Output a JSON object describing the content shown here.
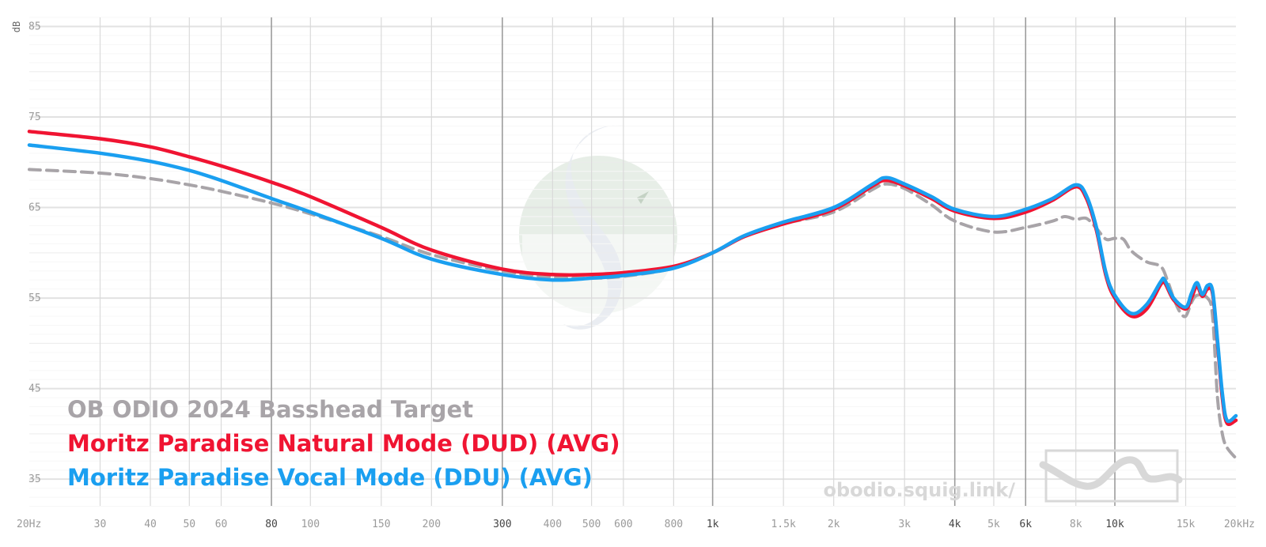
{
  "chart_data": {
    "type": "line",
    "y_unit": "dB",
    "x_scale": "log",
    "xlim": [
      20,
      20000
    ],
    "ylim": [
      31,
      86
    ],
    "grid": true,
    "y_ticks": [
      {
        "value": 85,
        "label": "85"
      },
      {
        "value": 75,
        "label": "75"
      },
      {
        "value": 65,
        "label": "65"
      },
      {
        "value": 55,
        "label": "55"
      },
      {
        "value": 45,
        "label": "45"
      },
      {
        "value": 35,
        "label": "35"
      }
    ],
    "x_ticks": [
      {
        "value": 20,
        "label": "20Hz",
        "major": false
      },
      {
        "value": 30,
        "label": "30",
        "major": false
      },
      {
        "value": 40,
        "label": "40",
        "major": false
      },
      {
        "value": 50,
        "label": "50",
        "major": false
      },
      {
        "value": 60,
        "label": "60",
        "major": false
      },
      {
        "value": 80,
        "label": "80",
        "major": true
      },
      {
        "value": 100,
        "label": "100",
        "major": false
      },
      {
        "value": 150,
        "label": "150",
        "major": false
      },
      {
        "value": 200,
        "label": "200",
        "major": false
      },
      {
        "value": 300,
        "label": "300",
        "major": true
      },
      {
        "value": 400,
        "label": "400",
        "major": false
      },
      {
        "value": 500,
        "label": "500",
        "major": false
      },
      {
        "value": 600,
        "label": "600",
        "major": false
      },
      {
        "value": 800,
        "label": "800",
        "major": false
      },
      {
        "value": 1000,
        "label": "1k",
        "major": true
      },
      {
        "value": 1500,
        "label": "1.5k",
        "major": false
      },
      {
        "value": 2000,
        "label": "2k",
        "major": false
      },
      {
        "value": 3000,
        "label": "3k",
        "major": false
      },
      {
        "value": 4000,
        "label": "4k",
        "major": true
      },
      {
        "value": 5000,
        "label": "5k",
        "major": false
      },
      {
        "value": 6000,
        "label": "6k",
        "major": true
      },
      {
        "value": 8000,
        "label": "8k",
        "major": false
      },
      {
        "value": 10000,
        "label": "10k",
        "major": true
      },
      {
        "value": 15000,
        "label": "15k",
        "major": false
      },
      {
        "value": 20000,
        "label": "20kHz",
        "major": false
      }
    ],
    "series": [
      {
        "name": "OB ODIO 2024 Basshead Target",
        "color": "#a8a4a8",
        "dashed": true,
        "points": [
          [
            20,
            69.2
          ],
          [
            30,
            68.8
          ],
          [
            40,
            68.2
          ],
          [
            50,
            67.5
          ],
          [
            60,
            66.8
          ],
          [
            80,
            65.5
          ],
          [
            100,
            64.3
          ],
          [
            150,
            61.8
          ],
          [
            200,
            59.8
          ],
          [
            300,
            58.0
          ],
          [
            400,
            57.3
          ],
          [
            500,
            57.2
          ],
          [
            600,
            57.4
          ],
          [
            800,
            58.3
          ],
          [
            1000,
            60.0
          ],
          [
            1200,
            61.8
          ],
          [
            1500,
            63.2
          ],
          [
            2000,
            64.5
          ],
          [
            2500,
            67.0
          ],
          [
            2700,
            67.6
          ],
          [
            3000,
            67.1
          ],
          [
            3500,
            65.3
          ],
          [
            4000,
            63.5
          ],
          [
            5000,
            62.3
          ],
          [
            6000,
            62.8
          ],
          [
            7000,
            63.5
          ],
          [
            7500,
            64.0
          ],
          [
            8000,
            63.7
          ],
          [
            8500,
            63.8
          ],
          [
            9000,
            62.7
          ],
          [
            9500,
            61.5
          ],
          [
            10000,
            61.6
          ],
          [
            10500,
            61.5
          ],
          [
            11000,
            60.2
          ],
          [
            12000,
            59.0
          ],
          [
            13000,
            58.5
          ],
          [
            13500,
            57.0
          ],
          [
            14000,
            55.0
          ],
          [
            14500,
            53.5
          ],
          [
            15000,
            53.0
          ],
          [
            15500,
            54.5
          ],
          [
            16000,
            55.3
          ],
          [
            17000,
            55.0
          ],
          [
            17500,
            53.0
          ],
          [
            18000,
            44.0
          ],
          [
            18500,
            40.0
          ],
          [
            19000,
            38.5
          ],
          [
            20000,
            37.3
          ]
        ]
      },
      {
        "name": "Moritz Paradise Natural Mode (DUD) (AVG)",
        "color": "#f01432",
        "dashed": false,
        "points": [
          [
            20,
            73.4
          ],
          [
            30,
            72.6
          ],
          [
            40,
            71.7
          ],
          [
            50,
            70.6
          ],
          [
            60,
            69.6
          ],
          [
            80,
            67.8
          ],
          [
            100,
            66.2
          ],
          [
            150,
            62.8
          ],
          [
            200,
            60.3
          ],
          [
            300,
            58.2
          ],
          [
            400,
            57.6
          ],
          [
            500,
            57.6
          ],
          [
            600,
            57.8
          ],
          [
            800,
            58.5
          ],
          [
            1000,
            60.0
          ],
          [
            1200,
            61.8
          ],
          [
            1500,
            63.2
          ],
          [
            2000,
            64.8
          ],
          [
            2500,
            67.4
          ],
          [
            2700,
            68.0
          ],
          [
            3000,
            67.4
          ],
          [
            3500,
            66.0
          ],
          [
            4000,
            64.6
          ],
          [
            5000,
            63.8
          ],
          [
            6000,
            64.5
          ],
          [
            7000,
            65.8
          ],
          [
            8000,
            67.3
          ],
          [
            8500,
            66.0
          ],
          [
            9000,
            62.5
          ],
          [
            9500,
            57.5
          ],
          [
            10000,
            55.0
          ],
          [
            11000,
            53.0
          ],
          [
            12000,
            53.8
          ],
          [
            13000,
            56.5
          ],
          [
            13300,
            56.7
          ],
          [
            14000,
            54.8
          ],
          [
            15000,
            53.8
          ],
          [
            15500,
            55.0
          ],
          [
            16000,
            56.3
          ],
          [
            16500,
            55.2
          ],
          [
            17000,
            56.0
          ],
          [
            17500,
            55.5
          ],
          [
            18000,
            50.0
          ],
          [
            18500,
            44.0
          ],
          [
            19000,
            41.2
          ],
          [
            20000,
            41.5
          ]
        ]
      },
      {
        "name": "Moritz Paradise Vocal Mode (DDU) (AVG)",
        "color": "#1a9ff0",
        "dashed": false,
        "points": [
          [
            20,
            71.9
          ],
          [
            30,
            71.0
          ],
          [
            40,
            70.1
          ],
          [
            50,
            69.1
          ],
          [
            60,
            68.0
          ],
          [
            80,
            66.0
          ],
          [
            100,
            64.5
          ],
          [
            150,
            61.6
          ],
          [
            200,
            59.3
          ],
          [
            300,
            57.6
          ],
          [
            400,
            57.0
          ],
          [
            500,
            57.2
          ],
          [
            600,
            57.5
          ],
          [
            800,
            58.3
          ],
          [
            1000,
            60.0
          ],
          [
            1200,
            61.9
          ],
          [
            1500,
            63.4
          ],
          [
            2000,
            65.0
          ],
          [
            2500,
            67.6
          ],
          [
            2700,
            68.3
          ],
          [
            3000,
            67.6
          ],
          [
            3500,
            66.2
          ],
          [
            4000,
            64.8
          ],
          [
            5000,
            64.0
          ],
          [
            6000,
            64.8
          ],
          [
            7000,
            66.0
          ],
          [
            8000,
            67.5
          ],
          [
            8500,
            66.3
          ],
          [
            9000,
            62.8
          ],
          [
            9500,
            57.8
          ],
          [
            10000,
            55.3
          ],
          [
            11000,
            53.3
          ],
          [
            12000,
            54.3
          ],
          [
            13000,
            56.8
          ],
          [
            13300,
            57.0
          ],
          [
            14000,
            55.0
          ],
          [
            15000,
            54.0
          ],
          [
            15500,
            55.5
          ],
          [
            16000,
            56.7
          ],
          [
            16500,
            55.4
          ],
          [
            17000,
            56.4
          ],
          [
            17500,
            55.8
          ],
          [
            18000,
            50.3
          ],
          [
            18500,
            44.5
          ],
          [
            19000,
            41.5
          ],
          [
            20000,
            42.0
          ]
        ]
      }
    ]
  },
  "watermark": {
    "url": "obodio.squig.link/",
    "logo_color": "#c8d8c8"
  }
}
